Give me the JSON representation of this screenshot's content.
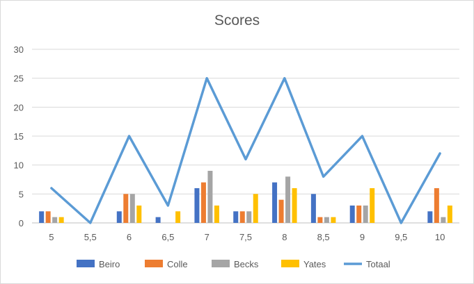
{
  "chart_data": {
    "type": "bar",
    "title": "Scores",
    "categories": [
      "5",
      "5,5",
      "6",
      "6,5",
      "7",
      "7,5",
      "8",
      "8,5",
      "9",
      "9,5",
      "10"
    ],
    "ylim": [
      0,
      30
    ],
    "yticks": [
      0,
      5,
      10,
      15,
      20,
      25,
      30
    ],
    "grid": true,
    "legend": "bottom",
    "series": [
      {
        "name": "Beiro",
        "kind": "bar",
        "color": "#4472C4",
        "values": [
          2,
          0,
          2,
          1,
          6,
          2,
          7,
          5,
          3,
          0,
          2
        ]
      },
      {
        "name": "Colle",
        "kind": "bar",
        "color": "#ED7D31",
        "values": [
          2,
          0,
          5,
          0,
          7,
          2,
          4,
          1,
          3,
          0,
          6
        ]
      },
      {
        "name": "Becks",
        "kind": "bar",
        "color": "#A5A5A5",
        "values": [
          1,
          0,
          5,
          0,
          9,
          2,
          8,
          1,
          3,
          0,
          1
        ]
      },
      {
        "name": "Yates",
        "kind": "bar",
        "color": "#FFC000",
        "values": [
          1,
          0,
          3,
          2,
          3,
          5,
          6,
          1,
          6,
          0,
          3
        ]
      },
      {
        "name": "Totaal",
        "kind": "line",
        "color": "#5B9BD5",
        "values": [
          6,
          0,
          15,
          3,
          25,
          11,
          25,
          8,
          15,
          0,
          12
        ]
      }
    ]
  }
}
